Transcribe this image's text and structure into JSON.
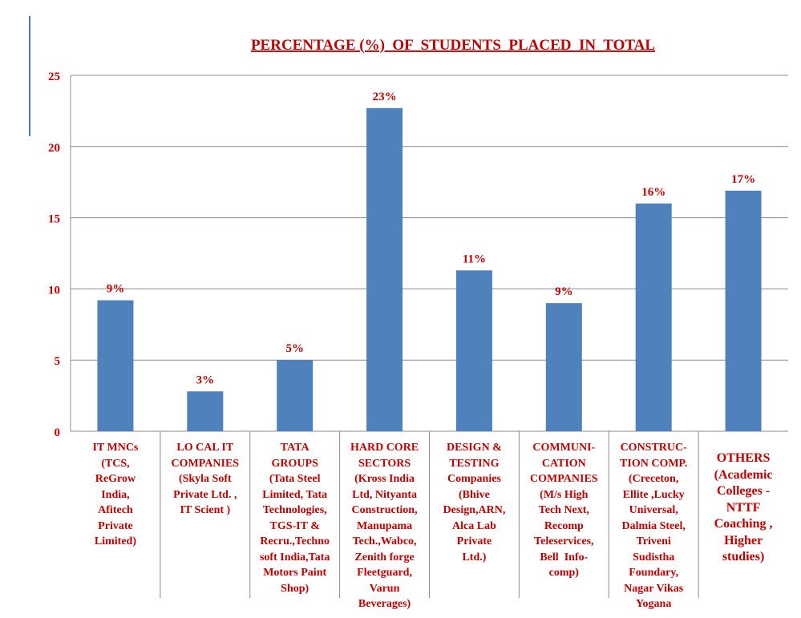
{
  "chart_data": {
    "type": "bar",
    "title": "PERCENTAGE (%)  OF  STUDENTS  PLACED  IN  TOTAL",
    "ylim": [
      0,
      25
    ],
    "yticks": [
      0,
      5,
      10,
      15,
      20,
      25
    ],
    "grid": true,
    "categories": [
      "IT MNCs\n(TCS,\nReGrow\nIndia,\nAfitech\nPrivate\nLimited)",
      "LO CAL IT\nCOMPANIES\n(Skyla Soft\nPrivate Ltd. ,\nIT Scient )",
      "TATA\nGROUPS\n(Tata Steel\nLimited, Tata\nTechnologies,\nTGS-IT &\nRecru.,Techno\nsoft India,Tata\nMotors Paint\nShop)",
      "HARD CORE\nSECTORS\n(Kross India\nLtd, Nityanta\nConstruction,\nManupama\nTech.,Wabco,\nZenith forge\nFleetguard,\nVarun\nBeverages)",
      "DESIGN &\nTESTING\nCompanies\n(Bhive\nDesign,ARN,\nAlca Lab\nPrivate\nLtd.)",
      "COMMUNI-\nCATION\nCOMPANIES\n(M/s High\nTech Next,\nRecomp\nTeleservices,\nBell  Info-\ncomp)",
      "CONSTRUC-\nTION COMP.\n(Creceton,\nEllite ,Lucky\nUniversal,\nDalmia Steel,\nTriveni\nSudistha\nFoundary,\nNagar Vikas\nYogana",
      "OTHERS\n(Academic\nColleges -\nNTTF\nCoaching ,\nHigher\nstudies)"
    ],
    "values": [
      9.2,
      2.8,
      5.0,
      22.7,
      11.3,
      9.0,
      16.0,
      16.9
    ],
    "data_labels": [
      "9%",
      "3%",
      "5%",
      "23%",
      "11%",
      "9%",
      "16%",
      "17%"
    ],
    "colors": {
      "bar": "#4f81bd",
      "label": "#c00000",
      "grid": "#8c8c8c",
      "title": "#c00000"
    }
  }
}
